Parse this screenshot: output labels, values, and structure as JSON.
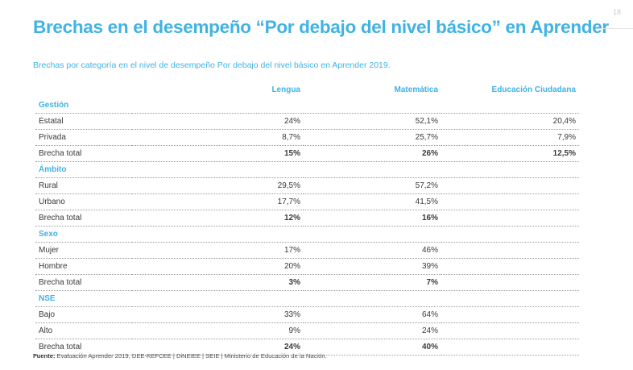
{
  "page": {
    "title": "Brechas en el desempeño “Por debajo del nivel básico” en Aprender",
    "page_number": "18",
    "subtitle": "Brechas por categoría en el nivel de desempeño Por debajo del nivel básico en Aprender 2019."
  },
  "table": {
    "columns": [
      "Lengua",
      "Matemática",
      "Educación Ciudadana"
    ],
    "groups": [
      {
        "category": "Gestión",
        "rows": [
          {
            "label": "Estatal",
            "values": [
              "24%",
              "52,1%",
              "20,4%"
            ]
          },
          {
            "label": "Privada",
            "values": [
              "8,7%",
              "25,7%",
              "7,9%"
            ]
          },
          {
            "label": "Brecha total",
            "values": [
              "15%",
              "26%",
              "12,5%"
            ]
          }
        ]
      },
      {
        "category": "Ámbito",
        "rows": [
          {
            "label": "Rural",
            "values": [
              "29,5%",
              "57,2%",
              ""
            ]
          },
          {
            "label": "Urbano",
            "values": [
              "17,7%",
              "41,5%",
              ""
            ]
          },
          {
            "label": "Brecha total",
            "values": [
              "12%",
              "16%",
              ""
            ]
          }
        ]
      },
      {
        "category": "Sexo",
        "rows": [
          {
            "label": "Mujer",
            "values": [
              "17%",
              "46%",
              ""
            ]
          },
          {
            "label": "Hombre",
            "values": [
              "20%",
              "39%",
              ""
            ]
          },
          {
            "label": "Brecha total",
            "values": [
              "3%",
              "7%",
              ""
            ]
          }
        ]
      },
      {
        "category": "NSE",
        "rows": [
          {
            "label": "Bajo",
            "values": [
              "33%",
              "64%",
              ""
            ]
          },
          {
            "label": "Alto",
            "values": [
              "9%",
              "24%",
              ""
            ]
          },
          {
            "label": "Brecha total",
            "values": [
              "24%",
              "40%",
              ""
            ]
          }
        ]
      }
    ]
  },
  "footer": {
    "label": "Fuente:",
    "text": " Evaluación Aprender 2019, DEE-REFCEE | DiNEIEE | SEIE | Ministerio de Educación de la Nación."
  }
}
